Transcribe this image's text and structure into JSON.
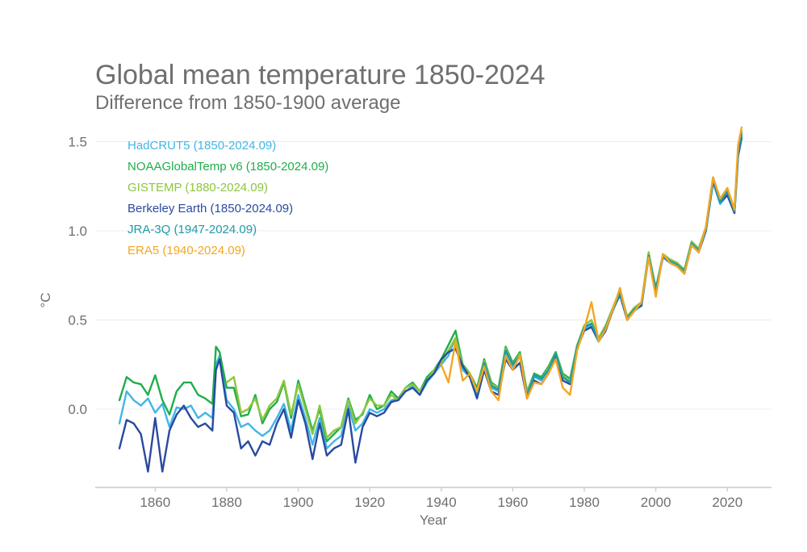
{
  "chart_data": {
    "type": "line",
    "title": "Global mean temperature 1850-2024",
    "subtitle": "Difference from 1850-1900 average",
    "xlabel": "Year",
    "ylabel": "°C",
    "xlim": [
      1850,
      2024
    ],
    "ylim": [
      -0.45,
      1.6
    ],
    "x_ticks": [
      1860,
      1880,
      1900,
      1920,
      1940,
      1960,
      1980,
      2000,
      2020
    ],
    "y_ticks": [
      1.5,
      1.0,
      0.5,
      0.0
    ],
    "y_tick_labels": [
      "1.5",
      "1.0",
      "0.5",
      "0.0"
    ],
    "grid": true,
    "legend_position": "top-left",
    "series": [
      {
        "name": "HadCRUT5 (1850-2024.09)",
        "color": "#41b6e6",
        "x": [
          1850,
          1852,
          1854,
          1856,
          1858,
          1860,
          1862,
          1864,
          1866,
          1868,
          1870,
          1872,
          1874,
          1876,
          1877,
          1878,
          1880,
          1882,
          1884,
          1886,
          1888,
          1890,
          1892,
          1894,
          1896,
          1898,
          1900,
          1902,
          1904,
          1906,
          1908,
          1910,
          1912,
          1914,
          1916,
          1918,
          1920,
          1922,
          1924,
          1926,
          1928,
          1930,
          1932,
          1934,
          1936,
          1938,
          1940,
          1942,
          1944,
          1946,
          1948,
          1950,
          1952,
          1954,
          1956,
          1958,
          1960,
          1962,
          1964,
          1966,
          1968,
          1970,
          1972,
          1974,
          1976,
          1978,
          1980,
          1982,
          1984,
          1986,
          1988,
          1990,
          1992,
          1994,
          1996,
          1998,
          2000,
          2002,
          2004,
          2006,
          2008,
          2010,
          2012,
          2014,
          2016,
          2018,
          2020,
          2022,
          2023,
          2024
        ],
        "values": [
          -0.08,
          0.1,
          0.05,
          0.02,
          0.06,
          -0.02,
          0.03,
          -0.1,
          0.01,
          0.0,
          0.02,
          -0.05,
          -0.02,
          -0.05,
          0.25,
          0.3,
          0.05,
          0.0,
          -0.1,
          -0.08,
          -0.12,
          -0.15,
          -0.12,
          -0.05,
          0.03,
          -0.12,
          0.08,
          -0.05,
          -0.2,
          -0.05,
          -0.22,
          -0.18,
          -0.15,
          0.02,
          -0.12,
          -0.08,
          0.0,
          -0.02,
          0.0,
          0.05,
          0.06,
          0.1,
          0.13,
          0.08,
          0.15,
          0.2,
          0.25,
          0.3,
          0.4,
          0.22,
          0.18,
          0.08,
          0.25,
          0.12,
          0.1,
          0.32,
          0.24,
          0.3,
          0.08,
          0.18,
          0.16,
          0.22,
          0.3,
          0.18,
          0.15,
          0.35,
          0.45,
          0.47,
          0.38,
          0.45,
          0.55,
          0.65,
          0.5,
          0.55,
          0.58,
          0.85,
          0.66,
          0.85,
          0.82,
          0.8,
          0.76,
          0.92,
          0.88,
          1.0,
          1.27,
          1.15,
          1.2,
          1.1,
          1.42,
          1.53
        ]
      },
      {
        "name": "NOAAGlobalTemp v6 (1850-2024.09)",
        "color": "#1fae4b",
        "x": [
          1850,
          1852,
          1854,
          1856,
          1858,
          1860,
          1862,
          1864,
          1866,
          1868,
          1870,
          1872,
          1874,
          1876,
          1877,
          1878,
          1880,
          1882,
          1884,
          1886,
          1888,
          1890,
          1892,
          1894,
          1896,
          1898,
          1900,
          1902,
          1904,
          1906,
          1908,
          1910,
          1912,
          1914,
          1916,
          1918,
          1920,
          1922,
          1924,
          1926,
          1928,
          1930,
          1932,
          1934,
          1936,
          1938,
          1940,
          1942,
          1944,
          1946,
          1948,
          1950,
          1952,
          1954,
          1956,
          1958,
          1960,
          1962,
          1964,
          1966,
          1968,
          1970,
          1972,
          1974,
          1976,
          1978,
          1980,
          1982,
          1984,
          1986,
          1988,
          1990,
          1992,
          1994,
          1996,
          1998,
          2000,
          2002,
          2004,
          2006,
          2008,
          2010,
          2012,
          2014,
          2016,
          2018,
          2020,
          2022,
          2023,
          2024
        ],
        "values": [
          0.05,
          0.18,
          0.15,
          0.14,
          0.08,
          0.19,
          0.05,
          -0.03,
          0.1,
          0.15,
          0.15,
          0.08,
          0.06,
          0.03,
          0.35,
          0.32,
          0.12,
          0.12,
          -0.04,
          -0.03,
          0.08,
          -0.08,
          0.0,
          0.04,
          0.15,
          -0.05,
          0.16,
          0.02,
          -0.12,
          0.0,
          -0.18,
          -0.14,
          -0.1,
          0.06,
          -0.06,
          -0.03,
          0.08,
          0.0,
          0.02,
          0.1,
          0.06,
          0.12,
          0.15,
          0.1,
          0.18,
          0.22,
          0.28,
          0.36,
          0.44,
          0.25,
          0.2,
          0.12,
          0.28,
          0.15,
          0.12,
          0.35,
          0.26,
          0.32,
          0.1,
          0.2,
          0.18,
          0.24,
          0.32,
          0.2,
          0.17,
          0.36,
          0.46,
          0.48,
          0.39,
          0.46,
          0.56,
          0.66,
          0.52,
          0.56,
          0.6,
          0.87,
          0.68,
          0.86,
          0.84,
          0.82,
          0.78,
          0.94,
          0.9,
          1.02,
          1.3,
          1.17,
          1.22,
          1.12,
          1.44,
          1.55
        ]
      },
      {
        "name": "GISTEMP (1880-2024.09)",
        "color": "#8cc63f",
        "x": [
          1880,
          1882,
          1884,
          1886,
          1888,
          1890,
          1892,
          1894,
          1896,
          1898,
          1900,
          1902,
          1904,
          1906,
          1908,
          1910,
          1912,
          1914,
          1916,
          1918,
          1920,
          1922,
          1924,
          1926,
          1928,
          1930,
          1932,
          1934,
          1936,
          1938,
          1940,
          1942,
          1944,
          1946,
          1948,
          1950,
          1952,
          1954,
          1956,
          1958,
          1960,
          1962,
          1964,
          1966,
          1968,
          1970,
          1972,
          1974,
          1976,
          1978,
          1980,
          1982,
          1984,
          1986,
          1988,
          1990,
          1992,
          1994,
          1996,
          1998,
          2000,
          2002,
          2004,
          2006,
          2008,
          2010,
          2012,
          2014,
          2016,
          2018,
          2020,
          2022,
          2023,
          2024
        ],
        "values": [
          0.15,
          0.18,
          -0.02,
          0.0,
          0.06,
          -0.06,
          0.02,
          0.06,
          0.16,
          -0.03,
          0.14,
          0.0,
          -0.14,
          0.02,
          -0.16,
          -0.12,
          -0.1,
          0.05,
          -0.08,
          -0.02,
          0.06,
          0.02,
          0.02,
          0.08,
          0.05,
          0.12,
          0.14,
          0.1,
          0.16,
          0.22,
          0.26,
          0.33,
          0.4,
          0.24,
          0.2,
          0.1,
          0.27,
          0.14,
          0.12,
          0.34,
          0.25,
          0.31,
          0.1,
          0.19,
          0.17,
          0.23,
          0.31,
          0.19,
          0.16,
          0.36,
          0.47,
          0.5,
          0.4,
          0.47,
          0.57,
          0.67,
          0.52,
          0.57,
          0.6,
          0.88,
          0.67,
          0.87,
          0.84,
          0.82,
          0.77,
          0.94,
          0.9,
          1.02,
          1.3,
          1.17,
          1.24,
          1.12,
          1.46,
          1.56
        ]
      },
      {
        "name": "Berkeley Earth (1850-2024.09)",
        "color": "#2a4aa0",
        "x": [
          1850,
          1852,
          1854,
          1856,
          1858,
          1860,
          1862,
          1864,
          1866,
          1868,
          1870,
          1872,
          1874,
          1876,
          1877,
          1878,
          1880,
          1882,
          1884,
          1886,
          1888,
          1890,
          1892,
          1894,
          1896,
          1898,
          1900,
          1902,
          1904,
          1906,
          1908,
          1910,
          1912,
          1914,
          1916,
          1918,
          1920,
          1922,
          1924,
          1926,
          1928,
          1930,
          1932,
          1934,
          1936,
          1938,
          1940,
          1942,
          1944,
          1946,
          1948,
          1950,
          1952,
          1954,
          1956,
          1958,
          1960,
          1962,
          1964,
          1966,
          1968,
          1970,
          1972,
          1974,
          1976,
          1978,
          1980,
          1982,
          1984,
          1986,
          1988,
          1990,
          1992,
          1994,
          1996,
          1998,
          2000,
          2002,
          2004,
          2006,
          2008,
          2010,
          2012,
          2014,
          2016,
          2018,
          2020,
          2022,
          2023,
          2024
        ],
        "values": [
          -0.22,
          -0.06,
          -0.08,
          -0.14,
          -0.35,
          -0.05,
          -0.35,
          -0.12,
          -0.03,
          0.02,
          -0.05,
          -0.1,
          -0.08,
          -0.12,
          0.22,
          0.28,
          0.02,
          -0.02,
          -0.22,
          -0.18,
          -0.26,
          -0.18,
          -0.2,
          -0.08,
          0.0,
          -0.16,
          0.05,
          -0.08,
          -0.28,
          -0.08,
          -0.26,
          -0.22,
          -0.2,
          0.0,
          -0.3,
          -0.1,
          -0.02,
          -0.04,
          -0.02,
          0.04,
          0.05,
          0.1,
          0.12,
          0.08,
          0.16,
          0.2,
          0.28,
          0.32,
          0.34,
          0.24,
          0.18,
          0.06,
          0.22,
          0.1,
          0.08,
          0.28,
          0.22,
          0.26,
          0.06,
          0.16,
          0.14,
          0.2,
          0.3,
          0.16,
          0.14,
          0.34,
          0.44,
          0.46,
          0.38,
          0.44,
          0.56,
          0.64,
          0.5,
          0.56,
          0.58,
          0.86,
          0.66,
          0.86,
          0.82,
          0.8,
          0.76,
          0.92,
          0.88,
          1.0,
          1.28,
          1.16,
          1.2,
          1.1,
          1.42,
          1.52
        ]
      },
      {
        "name": "JRA-3Q (1947-2024.09)",
        "color": "#1f9ba6",
        "x": [
          1948,
          1950,
          1952,
          1954,
          1956,
          1958,
          1960,
          1962,
          1964,
          1966,
          1968,
          1970,
          1972,
          1974,
          1976,
          1978,
          1980,
          1982,
          1984,
          1986,
          1988,
          1990,
          1992,
          1994,
          1996,
          1998,
          2000,
          2002,
          2004,
          2006,
          2008,
          2010,
          2012,
          2014,
          2016,
          2018,
          2020,
          2022,
          2023,
          2024
        ],
        "values": [
          0.2,
          0.09,
          0.26,
          0.13,
          0.11,
          0.33,
          0.25,
          0.3,
          0.08,
          0.19,
          0.17,
          0.22,
          0.31,
          0.18,
          0.15,
          0.35,
          0.46,
          0.48,
          0.38,
          0.46,
          0.56,
          0.65,
          0.51,
          0.56,
          0.59,
          0.86,
          0.67,
          0.86,
          0.83,
          0.81,
          0.77,
          0.93,
          0.89,
          1.01,
          1.29,
          1.16,
          1.22,
          1.11,
          1.44,
          1.54
        ]
      },
      {
        "name": "ERA5 (1940-2024.09)",
        "color": "#f4a623",
        "x": [
          1940,
          1942,
          1944,
          1946,
          1948,
          1950,
          1952,
          1954,
          1956,
          1958,
          1960,
          1962,
          1964,
          1966,
          1968,
          1970,
          1972,
          1974,
          1976,
          1978,
          1980,
          1982,
          1984,
          1986,
          1988,
          1990,
          1992,
          1994,
          1996,
          1998,
          2000,
          2002,
          2004,
          2006,
          2008,
          2010,
          2012,
          2014,
          2016,
          2018,
          2020,
          2022,
          2023,
          2024
        ],
        "values": [
          0.25,
          0.15,
          0.38,
          0.16,
          0.2,
          0.1,
          0.24,
          0.1,
          0.05,
          0.3,
          0.22,
          0.3,
          0.06,
          0.15,
          0.14,
          0.2,
          0.28,
          0.12,
          0.08,
          0.33,
          0.45,
          0.6,
          0.38,
          0.45,
          0.56,
          0.68,
          0.5,
          0.55,
          0.6,
          0.85,
          0.63,
          0.87,
          0.82,
          0.8,
          0.76,
          0.92,
          0.88,
          1.02,
          1.3,
          1.18,
          1.24,
          1.12,
          1.48,
          1.58
        ]
      }
    ]
  }
}
